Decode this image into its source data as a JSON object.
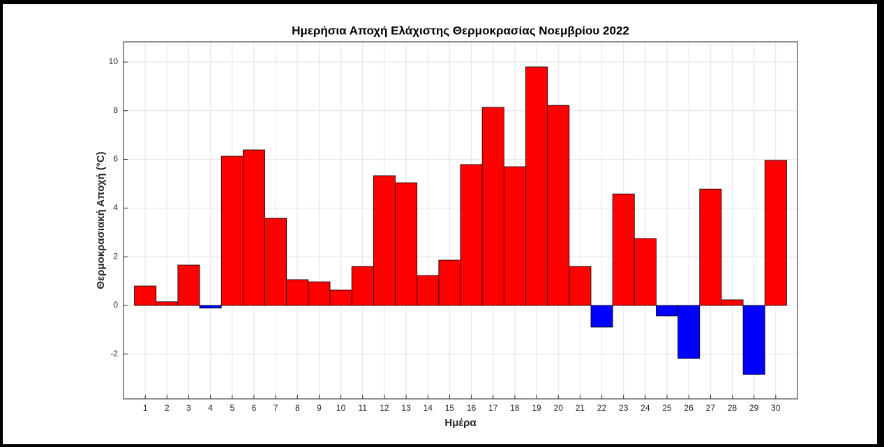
{
  "chart_data": {
    "type": "bar",
    "title": "Ημερήσια Αποχή Ελάχιστης Θερμοκρασίας Νοεμβρίου 2022",
    "xlabel": "Ημέρα",
    "ylabel": "Θερμοκρασιακή Αποχή (°C)",
    "x": [
      1,
      2,
      3,
      4,
      5,
      6,
      7,
      8,
      9,
      10,
      11,
      12,
      13,
      14,
      15,
      16,
      17,
      18,
      19,
      20,
      21,
      22,
      23,
      24,
      25,
      26,
      27,
      28,
      29,
      30
    ],
    "values": [
      0.8,
      0.15,
      1.66,
      -0.11,
      6.13,
      6.39,
      3.58,
      1.06,
      0.97,
      0.63,
      1.6,
      5.33,
      5.04,
      1.23,
      1.86,
      5.79,
      8.14,
      5.7,
      9.8,
      8.22,
      1.6,
      -0.89,
      4.58,
      2.75,
      -0.43,
      -2.18,
      4.78,
      0.23,
      -2.84,
      5.96
    ],
    "positive_color": "#ff0000",
    "negative_color": "#0000ff",
    "xlim": [
      0,
      31
    ],
    "xticks": [
      1,
      2,
      3,
      4,
      5,
      6,
      7,
      8,
      9,
      10,
      11,
      12,
      13,
      14,
      15,
      16,
      17,
      18,
      19,
      20,
      21,
      22,
      23,
      24,
      25,
      26,
      27,
      28,
      29,
      30
    ],
    "ylim": [
      -3.84,
      10.83
    ],
    "yticks": [
      -2,
      0,
      2,
      4,
      6,
      8,
      10
    ],
    "grid": true
  }
}
